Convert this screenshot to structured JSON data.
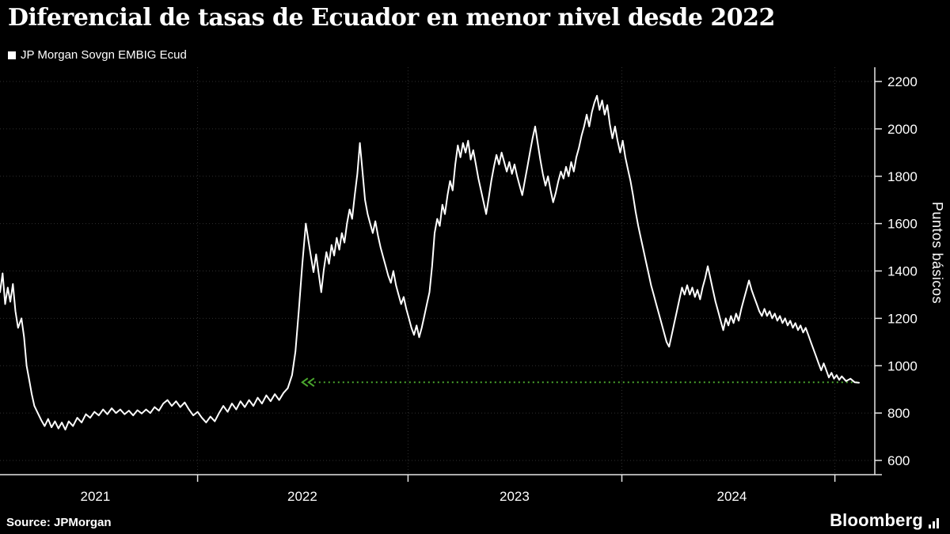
{
  "footer": {
    "source_label": "Source: JPMorgan",
    "brand": "Bloomberg"
  },
  "chart_data": {
    "type": "line",
    "title": "Diferencial de tasas de Ecuador en menor nivel desde 2022",
    "xlabel": "",
    "ylabel": "Puntos básicos",
    "ylim": [
      600,
      2200
    ],
    "grid": "dotted",
    "legend_position": "top-left",
    "background_color": "#000000",
    "y_ticks": [
      600,
      800,
      1000,
      1200,
      1400,
      1600,
      1800,
      2000,
      2200
    ],
    "x_ticks": [
      {
        "label": "2021",
        "pos": 0.111
      },
      {
        "label": "2022",
        "pos": 0.352
      },
      {
        "label": "2023",
        "pos": 0.599
      },
      {
        "label": "2024",
        "pos": 0.852
      }
    ],
    "x_gridlines": [
      0.23,
      0.475,
      0.724,
      0.972
    ],
    "reference_line": {
      "value": 930,
      "start": 0.35,
      "end": 1.0,
      "color": "#4aa62e",
      "style": "dotted",
      "arrow": "double-left"
    },
    "series": [
      {
        "name": "JP Morgan Sovgn EMBIG Ecud",
        "color": "#ffffff",
        "points": [
          [
            0.0,
            1310
          ],
          [
            0.003,
            1390
          ],
          [
            0.006,
            1260
          ],
          [
            0.009,
            1330
          ],
          [
            0.012,
            1270
          ],
          [
            0.015,
            1345
          ],
          [
            0.018,
            1230
          ],
          [
            0.021,
            1160
          ],
          [
            0.025,
            1200
          ],
          [
            0.028,
            1120
          ],
          [
            0.031,
            1000
          ],
          [
            0.034,
            940
          ],
          [
            0.037,
            880
          ],
          [
            0.04,
            830
          ],
          [
            0.044,
            800
          ],
          [
            0.048,
            770
          ],
          [
            0.052,
            745
          ],
          [
            0.056,
            775
          ],
          [
            0.06,
            740
          ],
          [
            0.064,
            765
          ],
          [
            0.068,
            735
          ],
          [
            0.072,
            760
          ],
          [
            0.076,
            730
          ],
          [
            0.08,
            765
          ],
          [
            0.085,
            745
          ],
          [
            0.09,
            780
          ],
          [
            0.095,
            760
          ],
          [
            0.1,
            795
          ],
          [
            0.105,
            780
          ],
          [
            0.11,
            805
          ],
          [
            0.115,
            790
          ],
          [
            0.12,
            815
          ],
          [
            0.125,
            795
          ],
          [
            0.13,
            820
          ],
          [
            0.135,
            800
          ],
          [
            0.14,
            815
          ],
          [
            0.145,
            795
          ],
          [
            0.15,
            810
          ],
          [
            0.155,
            790
          ],
          [
            0.16,
            812
          ],
          [
            0.165,
            798
          ],
          [
            0.17,
            815
          ],
          [
            0.175,
            800
          ],
          [
            0.18,
            825
          ],
          [
            0.185,
            810
          ],
          [
            0.19,
            840
          ],
          [
            0.195,
            855
          ],
          [
            0.2,
            830
          ],
          [
            0.205,
            850
          ],
          [
            0.21,
            825
          ],
          [
            0.215,
            845
          ],
          [
            0.22,
            815
          ],
          [
            0.225,
            790
          ],
          [
            0.23,
            805
          ],
          [
            0.235,
            780
          ],
          [
            0.24,
            760
          ],
          [
            0.245,
            785
          ],
          [
            0.25,
            765
          ],
          [
            0.255,
            800
          ],
          [
            0.26,
            830
          ],
          [
            0.265,
            805
          ],
          [
            0.27,
            840
          ],
          [
            0.275,
            815
          ],
          [
            0.28,
            850
          ],
          [
            0.285,
            825
          ],
          [
            0.29,
            855
          ],
          [
            0.295,
            830
          ],
          [
            0.3,
            865
          ],
          [
            0.305,
            840
          ],
          [
            0.31,
            875
          ],
          [
            0.315,
            850
          ],
          [
            0.32,
            880
          ],
          [
            0.325,
            855
          ],
          [
            0.33,
            885
          ],
          [
            0.335,
            905
          ],
          [
            0.34,
            960
          ],
          [
            0.344,
            1060
          ],
          [
            0.348,
            1240
          ],
          [
            0.352,
            1430
          ],
          [
            0.356,
            1600
          ],
          [
            0.359,
            1530
          ],
          [
            0.362,
            1460
          ],
          [
            0.365,
            1395
          ],
          [
            0.368,
            1470
          ],
          [
            0.371,
            1390
          ],
          [
            0.374,
            1310
          ],
          [
            0.377,
            1405
          ],
          [
            0.38,
            1480
          ],
          [
            0.383,
            1430
          ],
          [
            0.386,
            1510
          ],
          [
            0.389,
            1465
          ],
          [
            0.392,
            1540
          ],
          [
            0.395,
            1490
          ],
          [
            0.398,
            1560
          ],
          [
            0.401,
            1520
          ],
          [
            0.404,
            1600
          ],
          [
            0.407,
            1660
          ],
          [
            0.41,
            1620
          ],
          [
            0.413,
            1720
          ],
          [
            0.416,
            1810
          ],
          [
            0.419,
            1940
          ],
          [
            0.422,
            1820
          ],
          [
            0.425,
            1700
          ],
          [
            0.428,
            1640
          ],
          [
            0.431,
            1600
          ],
          [
            0.434,
            1560
          ],
          [
            0.437,
            1610
          ],
          [
            0.44,
            1550
          ],
          [
            0.443,
            1500
          ],
          [
            0.446,
            1460
          ],
          [
            0.449,
            1420
          ],
          [
            0.452,
            1380
          ],
          [
            0.455,
            1350
          ],
          [
            0.458,
            1400
          ],
          [
            0.461,
            1340
          ],
          [
            0.464,
            1300
          ],
          [
            0.467,
            1260
          ],
          [
            0.47,
            1290
          ],
          [
            0.473,
            1240
          ],
          [
            0.476,
            1200
          ],
          [
            0.479,
            1160
          ],
          [
            0.482,
            1130
          ],
          [
            0.485,
            1170
          ],
          [
            0.488,
            1120
          ],
          [
            0.491,
            1160
          ],
          [
            0.494,
            1210
          ],
          [
            0.497,
            1260
          ],
          [
            0.5,
            1310
          ],
          [
            0.503,
            1420
          ],
          [
            0.506,
            1560
          ],
          [
            0.509,
            1620
          ],
          [
            0.512,
            1590
          ],
          [
            0.515,
            1680
          ],
          [
            0.518,
            1640
          ],
          [
            0.521,
            1720
          ],
          [
            0.524,
            1780
          ],
          [
            0.527,
            1740
          ],
          [
            0.53,
            1850
          ],
          [
            0.533,
            1930
          ],
          [
            0.536,
            1880
          ],
          [
            0.539,
            1940
          ],
          [
            0.542,
            1900
          ],
          [
            0.545,
            1950
          ],
          [
            0.548,
            1870
          ],
          [
            0.551,
            1910
          ],
          [
            0.554,
            1850
          ],
          [
            0.557,
            1790
          ],
          [
            0.56,
            1740
          ],
          [
            0.563,
            1690
          ],
          [
            0.566,
            1640
          ],
          [
            0.569,
            1710
          ],
          [
            0.572,
            1780
          ],
          [
            0.575,
            1840
          ],
          [
            0.578,
            1890
          ],
          [
            0.581,
            1850
          ],
          [
            0.584,
            1900
          ],
          [
            0.587,
            1860
          ],
          [
            0.59,
            1820
          ],
          [
            0.593,
            1860
          ],
          [
            0.596,
            1810
          ],
          [
            0.599,
            1850
          ],
          [
            0.602,
            1800
          ],
          [
            0.605,
            1760
          ],
          [
            0.608,
            1720
          ],
          [
            0.611,
            1780
          ],
          [
            0.614,
            1840
          ],
          [
            0.617,
            1900
          ],
          [
            0.62,
            1960
          ],
          [
            0.623,
            2010
          ],
          [
            0.626,
            1940
          ],
          [
            0.629,
            1870
          ],
          [
            0.632,
            1810
          ],
          [
            0.635,
            1760
          ],
          [
            0.638,
            1800
          ],
          [
            0.641,
            1740
          ],
          [
            0.644,
            1690
          ],
          [
            0.647,
            1730
          ],
          [
            0.65,
            1780
          ],
          [
            0.653,
            1820
          ],
          [
            0.656,
            1790
          ],
          [
            0.659,
            1840
          ],
          [
            0.662,
            1800
          ],
          [
            0.665,
            1860
          ],
          [
            0.668,
            1820
          ],
          [
            0.671,
            1880
          ],
          [
            0.674,
            1920
          ],
          [
            0.677,
            1970
          ],
          [
            0.68,
            2010
          ],
          [
            0.683,
            2060
          ],
          [
            0.686,
            2010
          ],
          [
            0.689,
            2070
          ],
          [
            0.692,
            2110
          ],
          [
            0.695,
            2140
          ],
          [
            0.698,
            2080
          ],
          [
            0.701,
            2120
          ],
          [
            0.704,
            2060
          ],
          [
            0.707,
            2100
          ],
          [
            0.71,
            2020
          ],
          [
            0.713,
            1960
          ],
          [
            0.716,
            2010
          ],
          [
            0.719,
            1950
          ],
          [
            0.722,
            1900
          ],
          [
            0.725,
            1950
          ],
          [
            0.728,
            1880
          ],
          [
            0.731,
            1830
          ],
          [
            0.734,
            1780
          ],
          [
            0.737,
            1720
          ],
          [
            0.74,
            1650
          ],
          [
            0.743,
            1590
          ],
          [
            0.746,
            1540
          ],
          [
            0.749,
            1490
          ],
          [
            0.752,
            1440
          ],
          [
            0.755,
            1390
          ],
          [
            0.758,
            1340
          ],
          [
            0.761,
            1300
          ],
          [
            0.764,
            1260
          ],
          [
            0.767,
            1220
          ],
          [
            0.77,
            1180
          ],
          [
            0.773,
            1140
          ],
          [
            0.776,
            1100
          ],
          [
            0.779,
            1080
          ],
          [
            0.782,
            1130
          ],
          [
            0.785,
            1180
          ],
          [
            0.788,
            1230
          ],
          [
            0.791,
            1280
          ],
          [
            0.794,
            1330
          ],
          [
            0.797,
            1300
          ],
          [
            0.8,
            1340
          ],
          [
            0.803,
            1300
          ],
          [
            0.806,
            1330
          ],
          [
            0.809,
            1290
          ],
          [
            0.812,
            1320
          ],
          [
            0.815,
            1280
          ],
          [
            0.818,
            1330
          ],
          [
            0.821,
            1370
          ],
          [
            0.824,
            1420
          ],
          [
            0.827,
            1370
          ],
          [
            0.83,
            1320
          ],
          [
            0.833,
            1270
          ],
          [
            0.836,
            1230
          ],
          [
            0.839,
            1190
          ],
          [
            0.842,
            1150
          ],
          [
            0.845,
            1200
          ],
          [
            0.848,
            1170
          ],
          [
            0.851,
            1210
          ],
          [
            0.854,
            1180
          ],
          [
            0.857,
            1220
          ],
          [
            0.86,
            1190
          ],
          [
            0.863,
            1240
          ],
          [
            0.866,
            1280
          ],
          [
            0.869,
            1320
          ],
          [
            0.872,
            1360
          ],
          [
            0.875,
            1320
          ],
          [
            0.878,
            1290
          ],
          [
            0.881,
            1260
          ],
          [
            0.884,
            1230
          ],
          [
            0.887,
            1210
          ],
          [
            0.89,
            1240
          ],
          [
            0.893,
            1210
          ],
          [
            0.896,
            1230
          ],
          [
            0.899,
            1200
          ],
          [
            0.902,
            1220
          ],
          [
            0.905,
            1190
          ],
          [
            0.908,
            1210
          ],
          [
            0.911,
            1180
          ],
          [
            0.914,
            1200
          ],
          [
            0.917,
            1170
          ],
          [
            0.92,
            1190
          ],
          [
            0.923,
            1160
          ],
          [
            0.926,
            1180
          ],
          [
            0.929,
            1150
          ],
          [
            0.932,
            1170
          ],
          [
            0.935,
            1140
          ],
          [
            0.938,
            1160
          ],
          [
            0.941,
            1130
          ],
          [
            0.944,
            1100
          ],
          [
            0.947,
            1070
          ],
          [
            0.95,
            1040
          ],
          [
            0.953,
            1010
          ],
          [
            0.956,
            980
          ],
          [
            0.959,
            1010
          ],
          [
            0.962,
            980
          ],
          [
            0.965,
            950
          ],
          [
            0.968,
            970
          ],
          [
            0.971,
            945
          ],
          [
            0.974,
            960
          ],
          [
            0.977,
            940
          ],
          [
            0.98,
            955
          ],
          [
            0.985,
            935
          ],
          [
            0.99,
            945
          ],
          [
            0.995,
            930
          ],
          [
            1.0,
            928
          ]
        ]
      }
    ]
  }
}
